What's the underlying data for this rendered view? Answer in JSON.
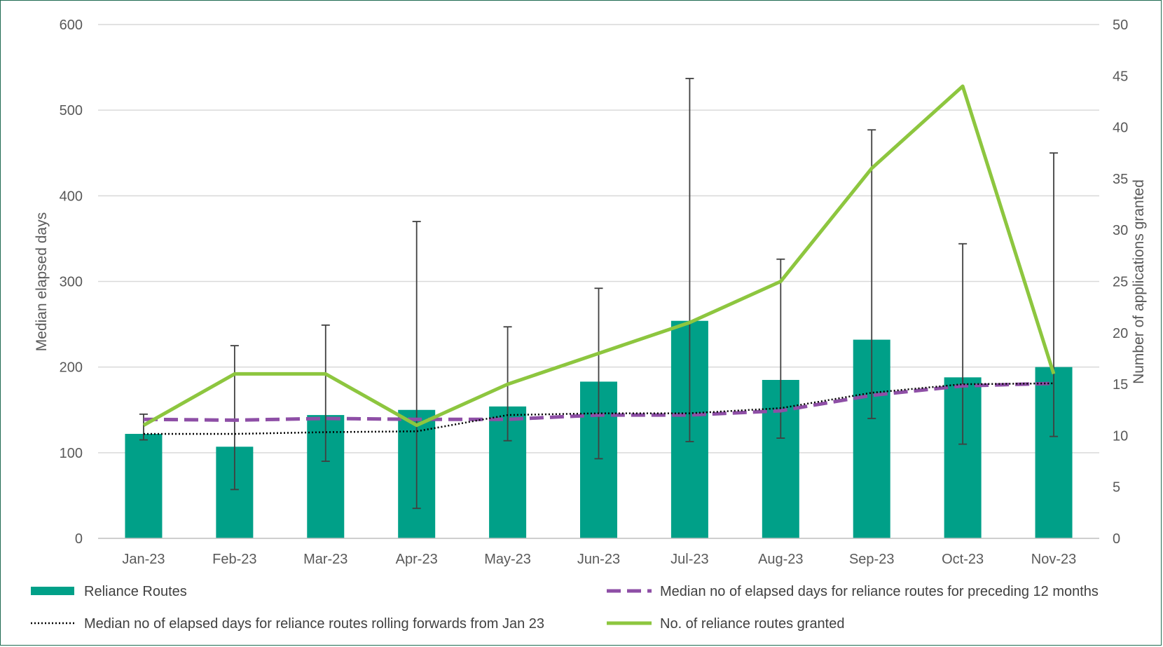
{
  "chart_data": {
    "type": "bar",
    "categories": [
      "Jan-23",
      "Feb-23",
      "Mar-23",
      "Apr-23",
      "May-23",
      "Jun-23",
      "Jul-23",
      "Aug-23",
      "Sep-23",
      "Oct-23",
      "Nov-23"
    ],
    "y_left": {
      "label": "Median elapsed days",
      "lim": [
        0,
        600
      ],
      "ticks": [
        "0",
        "100",
        "200",
        "300",
        "400",
        "500",
        "600"
      ]
    },
    "y_right": {
      "label": "Number  of applications granted",
      "lim": [
        0,
        50
      ],
      "ticks": [
        "0",
        "5",
        "10",
        "15",
        "20",
        "25",
        "30",
        "35",
        "40",
        "45",
        "50"
      ]
    },
    "grid": true,
    "series": [
      {
        "name": "Reliance Routes",
        "kind": "bar",
        "axis": "left",
        "color": "#00a088",
        "values": [
          122,
          107,
          144,
          150,
          154,
          183,
          254,
          185,
          232,
          188,
          200
        ],
        "error_low": [
          115,
          57,
          90,
          35,
          114,
          93,
          113,
          117,
          140,
          110,
          119
        ],
        "error_high": [
          145,
          225,
          249,
          370,
          247,
          292,
          537,
          326,
          477,
          344,
          450
        ]
      },
      {
        "name": "Median no of elapsed days for reliance routes for preceding 12 months",
        "kind": "line-dashed",
        "axis": "left",
        "color": "#8e4fa6",
        "values": [
          139,
          138,
          140,
          139,
          139,
          144,
          144,
          149,
          167,
          178,
          181
        ]
      },
      {
        "name": "Median no of elapsed days for reliance routes rolling forwards from Jan 23",
        "kind": "line-dotted",
        "axis": "left",
        "color": "#000000",
        "values": [
          122,
          122,
          124,
          125,
          144,
          146,
          146,
          152,
          170,
          180,
          181
        ]
      },
      {
        "name": "No. of reliance routes granted",
        "kind": "line",
        "axis": "right",
        "color": "#8dc63f",
        "values": [
          11,
          16,
          16,
          11,
          15,
          18,
          21,
          25,
          36,
          44,
          16
        ]
      }
    ],
    "legend": {
      "placement": "bottom",
      "rows": [
        [
          "Reliance Routes",
          "Median no of elapsed days for reliance routes for preceding 12 months"
        ],
        [
          "Median no of elapsed days for reliance routes rolling forwards from Jan 23",
          "No. of reliance routes granted"
        ]
      ]
    }
  }
}
